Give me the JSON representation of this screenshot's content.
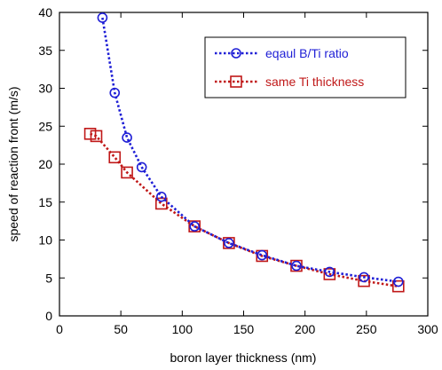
{
  "chart_data": {
    "type": "line",
    "title": "",
    "xlabel": "boron layer thickness (nm)",
    "ylabel": "speed of reaction front (m/s)",
    "xlim": [
      0,
      300
    ],
    "ylim": [
      0,
      40
    ],
    "xticks": [
      0,
      50,
      100,
      150,
      200,
      250,
      300
    ],
    "yticks": [
      0,
      5,
      10,
      15,
      20,
      25,
      30,
      35,
      40
    ],
    "grid": false,
    "legend_position": "top-right",
    "series": [
      {
        "name": "eqaul B/Ti ratio",
        "color": "#1f1fd6",
        "marker": "circle",
        "line_style": "dotted",
        "x": [
          35,
          45,
          55,
          67,
          83,
          110,
          138,
          165,
          193,
          220,
          248,
          276
        ],
        "y": [
          39.3,
          29.4,
          23.5,
          19.6,
          15.7,
          11.8,
          9.6,
          8.0,
          6.6,
          5.8,
          5.1,
          4.5
        ]
      },
      {
        "name": "same Ti thickness",
        "color": "#c01818",
        "marker": "square",
        "line_style": "dotted",
        "x": [
          25,
          30,
          45,
          55,
          83,
          110,
          138,
          165,
          193,
          220,
          248,
          276
        ],
        "y": [
          24.0,
          23.7,
          20.9,
          18.9,
          14.8,
          11.8,
          9.6,
          7.9,
          6.6,
          5.5,
          4.6,
          3.9
        ]
      }
    ]
  }
}
